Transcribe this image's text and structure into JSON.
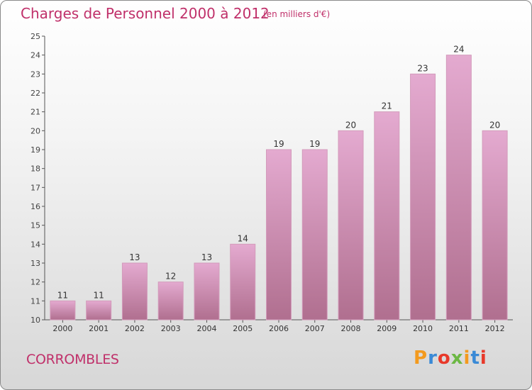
{
  "header": {
    "title": "Charges de Personnel 2000 à 2012",
    "subtitle": "(en milliers d'€)"
  },
  "footer": {
    "commune": "CORROMBLES",
    "brand": "Proxiti",
    "brand_colors": [
      "#f39a1e",
      "#3a8ad6",
      "#e8392a",
      "#6cb844",
      "#f39a1e",
      "#3a8ad6",
      "#e8392a"
    ]
  },
  "colors": {
    "title": "#c0306a",
    "bar_top": "#e3a9cd",
    "bar_bottom": "#b5708f",
    "axis": "#555555"
  },
  "chart_data": {
    "type": "bar",
    "title": "Charges de Personnel 2000 à 2012",
    "subtitle": "(en milliers d'€)",
    "categories": [
      "2000",
      "2001",
      "2002",
      "2003",
      "2004",
      "2005",
      "2006",
      "2007",
      "2008",
      "2009",
      "2010",
      "2011",
      "2012"
    ],
    "values": [
      11,
      11,
      13,
      12,
      13,
      14,
      19,
      19,
      20,
      21,
      23,
      24,
      20
    ],
    "ylim": [
      10,
      25
    ],
    "yticks": [
      10,
      11,
      12,
      13,
      14,
      15,
      16,
      17,
      18,
      19,
      20,
      21,
      22,
      23,
      24,
      25
    ],
    "xlabel": "",
    "ylabel": "",
    "grid": false,
    "data_labels": true
  }
}
